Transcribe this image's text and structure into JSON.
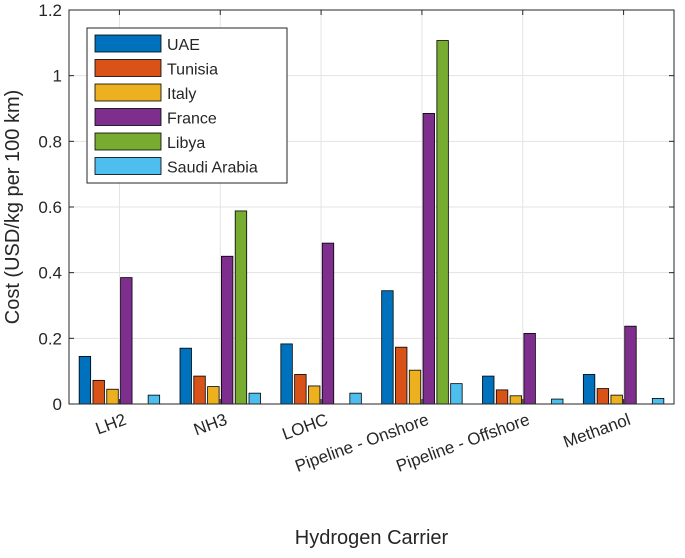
{
  "chart_data": {
    "type": "bar",
    "xlabel": "Hydrogen Carrier",
    "ylabel": "Cost (USD/kg per 100 km)",
    "ylim": [
      0,
      1.2
    ],
    "yticks": [
      0,
      0.2,
      0.4,
      0.6,
      0.8,
      1,
      1.2
    ],
    "ytick_labels": [
      "0",
      "0.2",
      "0.4",
      "0.6",
      "0.8",
      "1",
      "1.2"
    ],
    "grid": true,
    "legend_position": "top-left",
    "categories": [
      "LH2",
      "NH3",
      "LOHC",
      "Pipeline - Onshore",
      "Pipeline - Offshore",
      "Methanol"
    ],
    "series": [
      {
        "name": "UAE",
        "color": "#0072BD",
        "values": [
          0.145,
          0.17,
          0.183,
          0.345,
          0.085,
          0.09
        ]
      },
      {
        "name": "Tunisia",
        "color": "#D95319",
        "values": [
          0.072,
          0.085,
          0.09,
          0.173,
          0.043,
          0.047
        ]
      },
      {
        "name": "Italy",
        "color": "#EDB120",
        "values": [
          0.045,
          0.053,
          0.055,
          0.103,
          0.025,
          0.027
        ]
      },
      {
        "name": "France",
        "color": "#7E2F8E",
        "values": [
          0.385,
          0.45,
          0.49,
          0.885,
          0.215,
          0.237
        ]
      },
      {
        "name": "Libya",
        "color": "#77AC30",
        "values": [
          0,
          0.588,
          0,
          1.107,
          0,
          0
        ]
      },
      {
        "name": "Saudi Arabia",
        "color": "#4DBEEE",
        "values": [
          0.027,
          0.033,
          0.033,
          0.062,
          0.015,
          0.017
        ]
      }
    ]
  }
}
